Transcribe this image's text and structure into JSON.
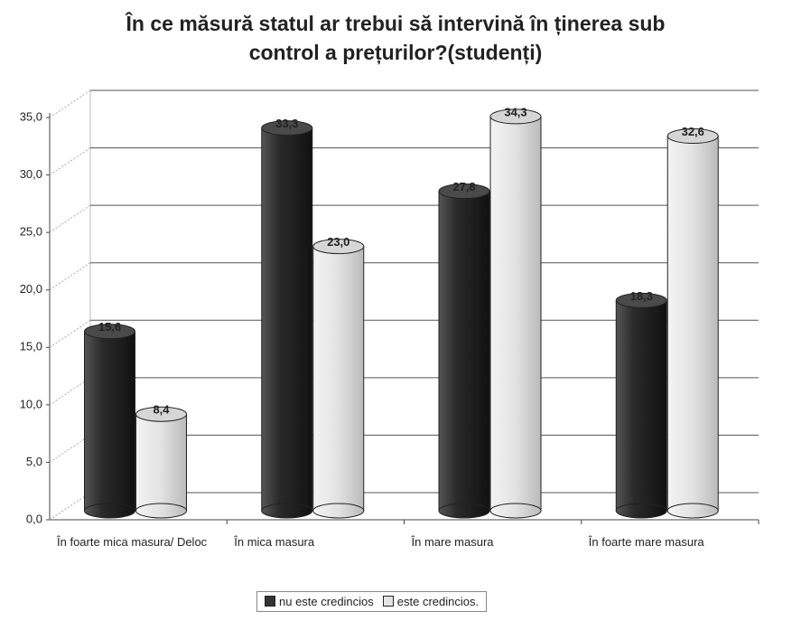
{
  "chart_data": {
    "type": "bar3d",
    "title": "În ce măsură statul ar trebui să intervină în ținerea sub control a prețurilor?(studenți)",
    "categories": [
      "În  foarte mica masura/ Deloc",
      "În mica masura",
      "În mare masura",
      "În foarte mare masura"
    ],
    "series": [
      {
        "name": "nu este credincios",
        "color": "#333333",
        "values": [
          15.6,
          33.3,
          27.8,
          18.3
        ],
        "value_labels": [
          "15,6",
          "33,3",
          "27,8",
          "18,3"
        ]
      },
      {
        "name": "este credincios.",
        "color": "#e4e4e4",
        "values": [
          8.4,
          23.0,
          34.3,
          32.6
        ],
        "value_labels": [
          "8,4",
          "23,0",
          "34,3",
          "32,6"
        ]
      }
    ],
    "ylim": [
      0,
      35
    ],
    "yticks": [
      {
        "value": 0,
        "label": "0,0"
      },
      {
        "value": 5,
        "label": "5,0"
      },
      {
        "value": 10,
        "label": "10,0"
      },
      {
        "value": 15,
        "label": "15,0"
      },
      {
        "value": 20,
        "label": "20,0"
      },
      {
        "value": 25,
        "label": "25,0"
      },
      {
        "value": 30,
        "label": "30,0"
      },
      {
        "value": 35,
        "label": "35,0"
      }
    ],
    "grid": true,
    "legend": "bottom"
  }
}
